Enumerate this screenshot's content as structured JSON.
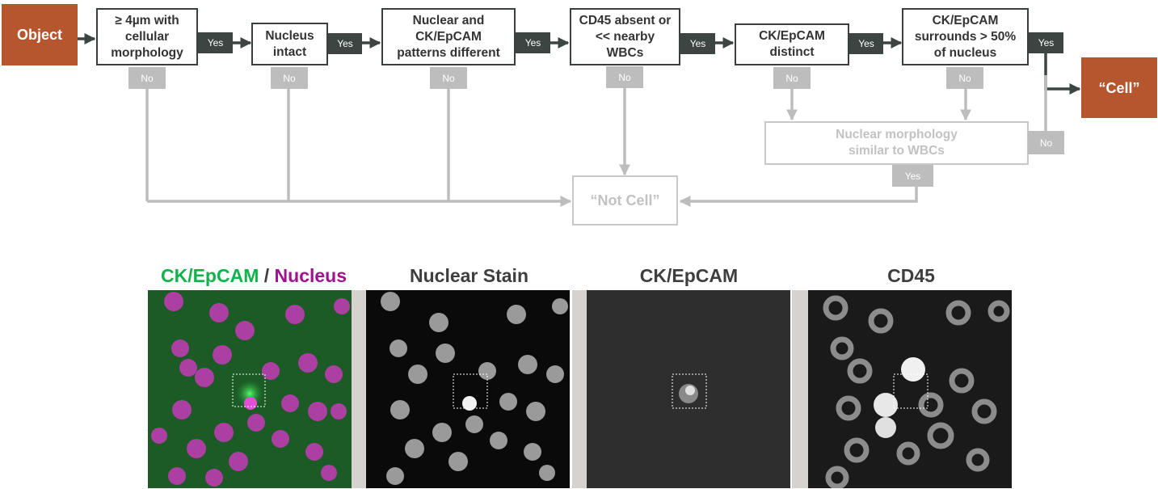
{
  "flow": {
    "start": "Object",
    "steps": [
      "≥ 4µm with cellular morphology",
      "Nucleus intact",
      "Nuclear and CK/EpCAM patterns different",
      "CD45 absent or << nearby WBCs",
      "CK/EpCAM distinct",
      "CK/EpCAM surrounds > 50% of nucleus"
    ],
    "check": "Nuclear morphology similar to WBCs",
    "result_cell": "“Cell”",
    "result_not_cell": "“Not Cell”",
    "yes": "Yes",
    "no": "No"
  },
  "panels": {
    "merged_a": "CK/EpCAM",
    "merged_sep": " / ",
    "merged_b": "Nucleus",
    "nuclear": "Nuclear Stain",
    "ckepcam": "CK/EpCAM",
    "cd45": "CD45"
  },
  "colors": {
    "terminal": "#b5562f",
    "yes_label": "#3d4543",
    "no_label": "#bdbdbd",
    "ck_green": "#12b34a",
    "nucleus_magenta": "#a0138e"
  }
}
